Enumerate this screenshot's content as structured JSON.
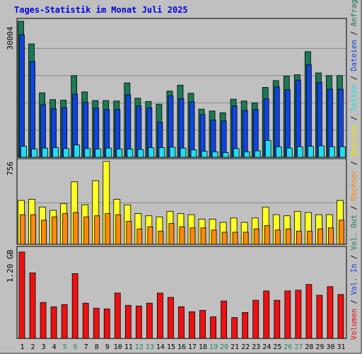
{
  "title": "Tages-Statistik im Monat Juli 2025",
  "colors": {
    "anfragen": "#1b7a55",
    "dateien": "#1144dd",
    "seiten": "#22ddee",
    "besuche": "#ffff22",
    "rechner": "#ff8811",
    "volumen": "#ee1111",
    "weekend_label": "#1b8a5a",
    "weekday_label": "#000000"
  },
  "chart_data": [
    {
      "type": "bar",
      "panel": "top",
      "ytick_label": "30004",
      "ymax": 30004,
      "grid": true,
      "categories": [
        "1",
        "2",
        "3",
        "4",
        "5",
        "6",
        "7",
        "8",
        "9",
        "10",
        "11",
        "12",
        "13",
        "14",
        "15",
        "16",
        "17",
        "18",
        "19",
        "20",
        "21",
        "22",
        "23",
        "24",
        "25",
        "26",
        "27",
        "28",
        "29",
        "30",
        "31"
      ],
      "weekend_days": [
        "5",
        "6",
        "12",
        "13",
        "19",
        "20",
        "26",
        "27"
      ],
      "series": [
        {
          "name": "Anfragen",
          "values": [
            30000,
            25000,
            14200,
            12700,
            12600,
            18000,
            14400,
            12500,
            12500,
            12400,
            16400,
            13000,
            12300,
            11700,
            14600,
            15900,
            14100,
            10600,
            10200,
            9800,
            12800,
            12400,
            12000,
            15400,
            16900,
            17900,
            18200,
            23300,
            18600,
            18000,
            18000
          ]
        },
        {
          "name": "Dateien",
          "values": [
            27000,
            21100,
            11600,
            10700,
            10900,
            13900,
            12100,
            10800,
            10500,
            10500,
            13800,
            11300,
            10900,
            7700,
            13500,
            12900,
            12200,
            9400,
            8200,
            8000,
            11300,
            10300,
            10500,
            12900,
            15500,
            14900,
            17000,
            20400,
            16500,
            15000,
            15000
          ]
        },
        {
          "name": "Seiten",
          "values": [
            2400,
            1800,
            2000,
            2100,
            1900,
            2700,
            1900,
            1800,
            2000,
            1800,
            1800,
            1700,
            2100,
            2100,
            2200,
            2000,
            1600,
            1300,
            1200,
            1000,
            1900,
            1200,
            1400,
            3700,
            2300,
            2000,
            2300,
            2400,
            2500,
            2300,
            2300
          ]
        }
      ]
    },
    {
      "type": "bar",
      "panel": "middle",
      "ytick_label": "756",
      "ymax": 756,
      "grid": true,
      "series": [
        {
          "name": "Besuche",
          "values": [
            400,
            410,
            340,
            310,
            370,
            570,
            360,
            580,
            756,
            410,
            360,
            280,
            260,
            250,
            300,
            280,
            270,
            230,
            230,
            200,
            240,
            200,
            240,
            340,
            270,
            260,
            300,
            290,
            270,
            270,
            400
          ]
        },
        {
          "name": "Rechner",
          "values": [
            270,
            270,
            220,
            250,
            280,
            290,
            250,
            260,
            280,
            270,
            210,
            140,
            160,
            120,
            190,
            160,
            150,
            150,
            130,
            110,
            110,
            110,
            140,
            170,
            130,
            140,
            120,
            120,
            140,
            150,
            220
          ]
        }
      ]
    },
    {
      "type": "bar",
      "panel": "bottom",
      "ytick_label": "1.20 GB",
      "ymax": 1.2,
      "grid": false,
      "series": [
        {
          "name": "Volumen",
          "values": [
            1.2,
            0.91,
            0.5,
            0.44,
            0.47,
            0.9,
            0.49,
            0.42,
            0.41,
            0.63,
            0.46,
            0.45,
            0.49,
            0.63,
            0.57,
            0.44,
            0.37,
            0.39,
            0.3,
            0.52,
            0.29,
            0.36,
            0.53,
            0.66,
            0.53,
            0.66,
            0.67,
            0.75,
            0.6,
            0.72,
            0.61
          ]
        }
      ]
    }
  ],
  "right_legend": [
    {
      "text": "Volumen",
      "color": "#ee1111"
    },
    {
      "text": " / ",
      "color": "#000000"
    },
    {
      "text": "Vol. In",
      "color": "#1144dd"
    },
    {
      "text": " / ",
      "color": "#000000"
    },
    {
      "text": "Vol. Out",
      "color": "#1b7a55"
    },
    {
      "text": " / ",
      "color": "#000000"
    },
    {
      "text": "Rechner",
      "color": "#ff8811"
    },
    {
      "text": " / ",
      "color": "#000000"
    },
    {
      "text": "Besuche",
      "color": "#e6e600"
    },
    {
      "text": " / ",
      "color": "#000000"
    },
    {
      "text": "Seiten",
      "color": "#22ddee"
    },
    {
      "text": " / ",
      "color": "#000000"
    },
    {
      "text": "Dateien",
      "color": "#1144dd"
    },
    {
      "text": " / ",
      "color": "#000000"
    },
    {
      "text": "Anfragen",
      "color": "#1b7a55"
    }
  ]
}
